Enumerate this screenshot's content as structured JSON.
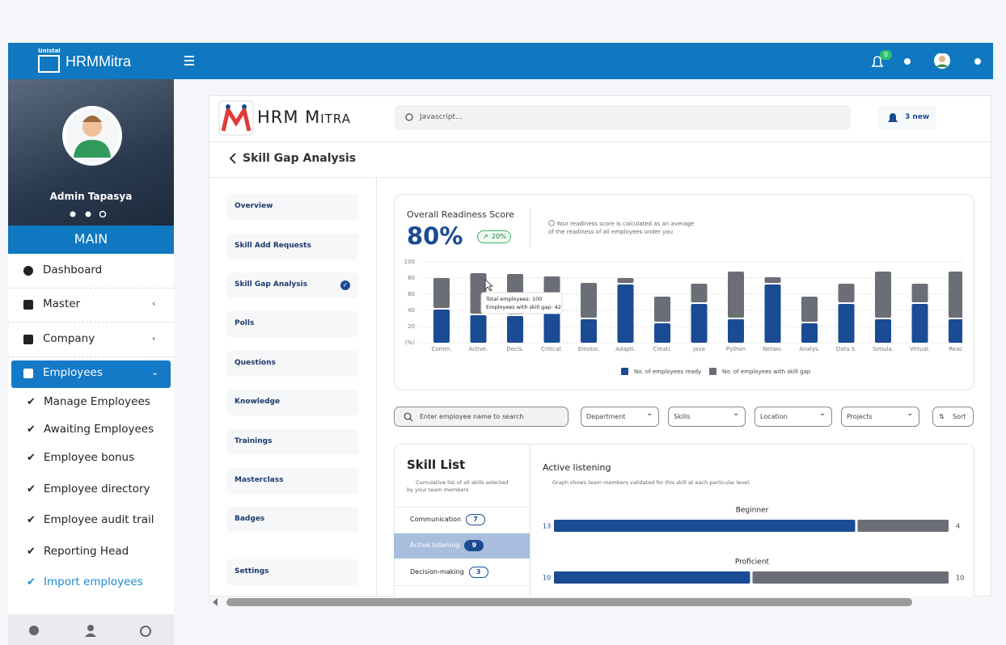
{
  "topbar": {
    "brand": "HRMMitra",
    "logo_text": "Unistal",
    "notification_count": "0"
  },
  "sidebar": {
    "user": "Admin Tapasya",
    "section": "MAIN",
    "menu": [
      "Dashboard",
      "Master",
      "Company",
      "Employees"
    ],
    "submenu": [
      "Manage Employees",
      "Awaiting Employees",
      "Employee bonus",
      "Employee directory",
      "Employee audit trail",
      "Reporting Head",
      "Import employees"
    ]
  },
  "header": {
    "app_name": "HRM Mitra",
    "search_placeholder": "Javascript...",
    "notifications": "3 new",
    "page_title": "Skill Gap Analysis"
  },
  "nav": [
    "Overview",
    "Skill Add Requests",
    "Skill Gap Analysis",
    "Polls",
    "Questions",
    "Knowledge",
    "Trainings",
    "Masterclass",
    "Badges",
    "Settings"
  ],
  "readiness": {
    "title": "Overall Readiness Score",
    "score": "80%",
    "change": "20%",
    "note": "Your readiness score is calculated as an average of the readiness of all employees under you",
    "chart": {
      "type": "bar",
      "stacked": true,
      "categories": [
        "Comm.",
        "Active.",
        "Decis.",
        "Critical.",
        "Emotio.",
        "Adapti.",
        "Creati.",
        "Java",
        "Python",
        "Netwo.",
        "Analys.",
        "Data S.",
        "Simula.",
        "Virtual.",
        "React"
      ],
      "series": [
        {
          "name": "No. of employees ready",
          "color": "#1a4b94",
          "values": [
            41,
            34,
            33,
            36,
            29,
            72,
            24,
            48,
            29,
            72,
            24,
            48,
            29,
            48,
            29
          ]
        },
        {
          "name": "No. of employees with skill gap",
          "color": "#6b6e76",
          "values": [
            39,
            52,
            52,
            46,
            45,
            8,
            33,
            25,
            59,
            9,
            33,
            25,
            59,
            25,
            59
          ]
        }
      ],
      "ylim": [
        0,
        100
      ],
      "yticks": [
        {
          "value": 0,
          "label": "(%)"
        },
        20,
        40,
        60,
        80,
        100
      ],
      "grid": true,
      "legend": "bottom",
      "tooltip": [
        "Total employees: 100",
        "Employees with skill gap: 42"
      ]
    }
  },
  "filters": {
    "search_placeholder": "Enter employee name to search",
    "dropdowns": [
      "Department",
      "Skills",
      "Location",
      "Projects"
    ],
    "sort": "Sort"
  },
  "skill_list": {
    "title": "Skill List",
    "note": "Cumulative list of all skills selected by your team members",
    "items": [
      {
        "name": "Communication",
        "count": 7
      },
      {
        "name": "Active listening",
        "count": 9
      },
      {
        "name": "Decision-making",
        "count": 3
      }
    ]
  },
  "skill_detail": {
    "title": "Active listening",
    "note": "Graph shows team members validated for this skill at each particular level.",
    "levels": [
      {
        "name": "Beginner",
        "values": [
          13,
          4
        ]
      },
      {
        "name": "Proficient",
        "values": [
          10,
          10
        ]
      }
    ]
  }
}
